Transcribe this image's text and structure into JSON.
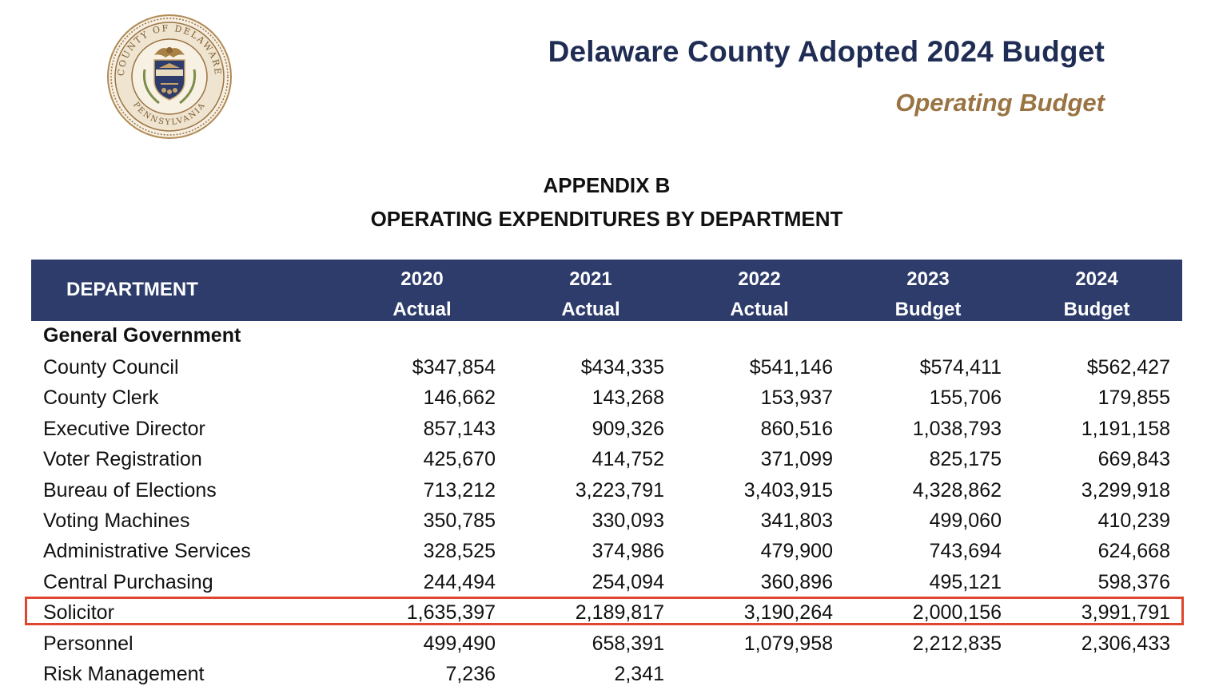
{
  "header": {
    "title": "Delaware County Adopted 2024 Budget",
    "subtitle": "Operating Budget",
    "seal": {
      "icon": "county-seal-icon",
      "text_top": "COUNTY OF DELAWARE",
      "text_bottom": "PENNSYLVANIA",
      "colors": {
        "gold": "#9a7343",
        "navy": "#2d3c6b",
        "ring": "#c8a36a"
      }
    }
  },
  "appendix": {
    "label": "APPENDIX B",
    "title": "OPERATING EXPENDITURES BY DEPARTMENT"
  },
  "table": {
    "header_color": "#2d3c6b",
    "department_header": "DEPARTMENT",
    "columns": [
      {
        "year": "2020",
        "type": "Actual"
      },
      {
        "year": "2021",
        "type": "Actual"
      },
      {
        "year": "2022",
        "type": "Actual"
      },
      {
        "year": "2023",
        "type": "Budget"
      },
      {
        "year": "2024",
        "type": "Budget"
      }
    ],
    "section": "General Government",
    "rows": [
      {
        "name": "County Council",
        "values": [
          "$347,854",
          "$434,335",
          "$541,146",
          "$574,411",
          "$562,427"
        ]
      },
      {
        "name": "County Clerk",
        "values": [
          "146,662",
          "143,268",
          "153,937",
          "155,706",
          "179,855"
        ]
      },
      {
        "name": "Executive Director",
        "values": [
          "857,143",
          "909,326",
          "860,516",
          "1,038,793",
          "1,191,158"
        ]
      },
      {
        "name": "Voter Registration",
        "values": [
          "425,670",
          "414,752",
          "371,099",
          "825,175",
          "669,843"
        ]
      },
      {
        "name": "Bureau of Elections",
        "values": [
          "713,212",
          "3,223,791",
          "3,403,915",
          "4,328,862",
          "3,299,918"
        ]
      },
      {
        "name": "Voting Machines",
        "values": [
          "350,785",
          "330,093",
          "341,803",
          "499,060",
          "410,239"
        ]
      },
      {
        "name": "Administrative Services",
        "values": [
          "328,525",
          "374,986",
          "479,900",
          "743,694",
          "624,668"
        ]
      },
      {
        "name": "Central Purchasing",
        "values": [
          "244,494",
          "254,094",
          "360,896",
          "495,121",
          "598,376"
        ]
      },
      {
        "name": "Solicitor",
        "values": [
          "1,635,397",
          "2,189,817",
          "3,190,264",
          "2,000,156",
          "3,991,791"
        ]
      },
      {
        "name": "Personnel",
        "values": [
          "499,490",
          "658,391",
          "1,079,958",
          "2,212,835",
          "2,306,433"
        ]
      },
      {
        "name": "Risk Management",
        "values": [
          "7,236",
          "2,341",
          "",
          "",
          ""
        ]
      }
    ],
    "highlighted_row": "Solicitor",
    "highlight_color": "#e0452f"
  }
}
